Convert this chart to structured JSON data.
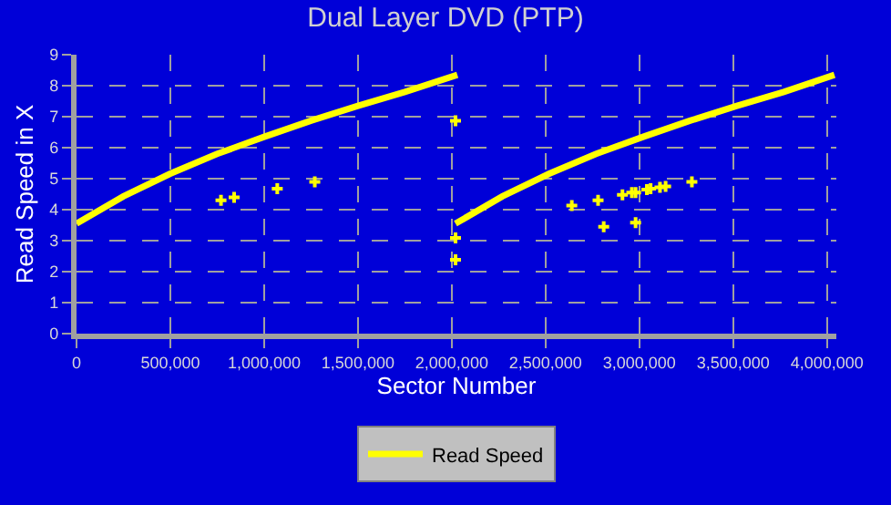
{
  "chart_data": {
    "type": "line",
    "title": "Dual Layer DVD (PTP)",
    "xlabel": "Sector Number",
    "ylabel": "Read Speed in X",
    "xlim": [
      0,
      4050000
    ],
    "xticks": [
      {
        "value": 0,
        "label": "0"
      },
      {
        "value": 500000,
        "label": "500,000"
      },
      {
        "value": 1000000,
        "label": "1,000,000"
      },
      {
        "value": 1500000,
        "label": "1,500,000"
      },
      {
        "value": 2000000,
        "label": "2,000,000"
      },
      {
        "value": 2500000,
        "label": "2,500,000"
      },
      {
        "value": 3000000,
        "label": "3,000,000"
      },
      {
        "value": 3500000,
        "label": "3,500,000"
      },
      {
        "value": 4000000,
        "label": "4,000,000"
      }
    ],
    "ylim": [
      0,
      9
    ],
    "yticks": [
      0,
      1,
      2,
      3,
      4,
      5,
      6,
      7,
      8,
      9
    ],
    "grid": true,
    "legend": "bottom",
    "series": [
      {
        "name": "Read Speed",
        "color": "#ffff00",
        "x": [
          0,
          250000,
          500000,
          750000,
          1000000,
          1250000,
          1500000,
          1750000,
          2030000,
          2025000,
          2020000,
          2270000,
          2520000,
          2770000,
          3020000,
          3270000,
          3520000,
          3770000,
          4040000
        ],
        "values": [
          3.55,
          4.43,
          5.16,
          5.8,
          6.35,
          6.87,
          7.35,
          7.8,
          8.35,
          null,
          3.55,
          4.43,
          5.16,
          5.8,
          6.35,
          6.87,
          7.35,
          7.8,
          8.35
        ]
      },
      {
        "type": "scatter",
        "marker": "cross",
        "color": "#ffff00",
        "x": [
          770000,
          840000,
          1070000,
          1270000,
          2020000,
          2020000,
          2020000,
          2640000,
          2780000,
          2810000,
          2910000,
          2960000,
          2980000,
          2980000,
          3040000,
          3060000,
          3110000,
          3140000,
          3280000
        ],
        "values": [
          4.3,
          4.4,
          4.68,
          4.9,
          6.87,
          3.09,
          2.38,
          4.13,
          4.3,
          3.45,
          4.48,
          4.55,
          4.55,
          3.58,
          4.65,
          4.68,
          4.72,
          4.75,
          4.9
        ]
      }
    ]
  }
}
